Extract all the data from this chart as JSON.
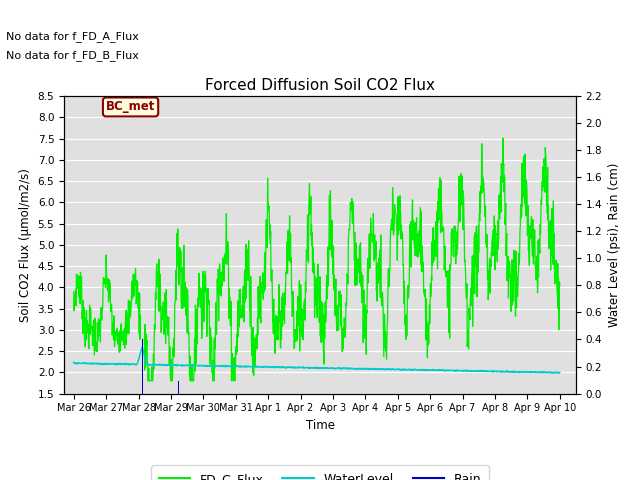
{
  "title": "Forced Diffusion Soil CO2 Flux",
  "xlabel": "Time",
  "ylabel_left": "Soil CO2 Flux (μmol/m2/s)",
  "ylabel_right": "Water Level (psi), Rain (cm)",
  "ylim_left": [
    1.5,
    8.5
  ],
  "ylim_right": [
    0.0,
    2.2
  ],
  "no_data_text1": "No data for f_FD_A_Flux",
  "no_data_text2": "No data for f_FD_B_Flux",
  "bc_met_label": "BC_met",
  "legend_entries": [
    "FD_C_Flux",
    "WaterLevel",
    "Rain"
  ],
  "fd_c_color": "#00ee00",
  "water_color": "#00cccc",
  "rain_color": "#0000cc",
  "background_color": "#e0e0e0",
  "xlim": [
    -0.3,
    15.5
  ],
  "xtick_positions": [
    0,
    1,
    2,
    3,
    4,
    5,
    6,
    7,
    8,
    9,
    10,
    11,
    12,
    13,
    14,
    15
  ],
  "xtick_labels": [
    "Mar 26",
    "Mar 27",
    "Mar 28",
    "Mar 29",
    "Mar 30",
    "Mar 31",
    "Apr 1",
    "Apr 2",
    "Apr 3",
    "Apr 4",
    "Apr 5",
    "Apr 6",
    "Apr 7",
    "Apr 8",
    "Apr 9",
    "Apr 10"
  ],
  "yticks_left": [
    1.5,
    2.0,
    2.5,
    3.0,
    3.5,
    4.0,
    4.5,
    5.0,
    5.5,
    6.0,
    6.5,
    7.0,
    7.5,
    8.0,
    8.5
  ],
  "yticks_right": [
    0.0,
    0.2,
    0.4,
    0.6,
    0.8,
    1.0,
    1.2,
    1.4,
    1.6,
    1.8,
    2.0,
    2.2
  ],
  "spike_day": 2.12,
  "rain2_day": 3.22,
  "rain2_val": 0.095,
  "water_start": 0.225,
  "water_end": 0.155
}
